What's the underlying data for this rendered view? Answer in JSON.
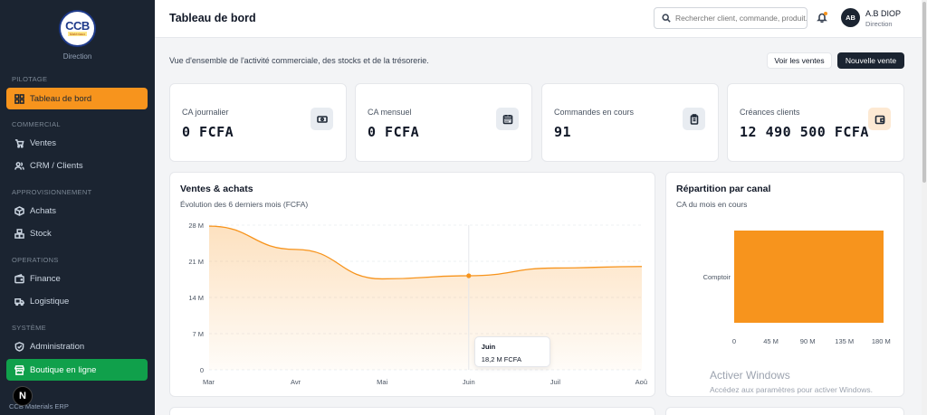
{
  "sidebar": {
    "logo_text": "CCB",
    "logo_sub": "Matériaux",
    "role": "Direction",
    "sections": {
      "pilotage": "PILOTAGE",
      "commercial": "COMMERCIAL",
      "approvisionnement": "APPROVISIONNEMENT",
      "operations": "OPERATIONS",
      "systeme": "SYSTÈME"
    },
    "items": {
      "dashboard": "Tableau de bord",
      "ventes": "Ventes",
      "crm": "CRM / Clients",
      "achats": "Achats",
      "stock": "Stock",
      "finance": "Finance",
      "logistique": "Logistique",
      "administration": "Administration",
      "boutique": "Boutique en ligne"
    },
    "badge": "N",
    "footer": "CCB Materials ERP"
  },
  "header": {
    "title": "Tableau de bord",
    "search_placeholder": "Rechercher client, commande, produit...",
    "avatar": "AB",
    "user_name": "A.B DIOP",
    "user_role": "Direction"
  },
  "main": {
    "subtitle": "Vue d'ensemble de l'activité commerciale, des stocks et de la trésorerie.",
    "btn_voir_ventes": "Voir les ventes",
    "btn_nouvelle_vente": "Nouvelle vente"
  },
  "kpis": [
    {
      "label": "CA journalier",
      "value": "0 FCFA",
      "icon": "cash-icon"
    },
    {
      "label": "CA mensuel",
      "value": "0 FCFA",
      "icon": "calendar-icon"
    },
    {
      "label": "Commandes en cours",
      "value": "91",
      "icon": "clipboard-icon"
    },
    {
      "label": "Créances clients",
      "value": "12 490 500 FCFA",
      "icon": "wallet-icon"
    }
  ],
  "colors": {
    "accent": "#f7941d",
    "sidebar_bg": "#1b2431",
    "green": "#10a04b"
  },
  "chart_data": [
    {
      "type": "area",
      "title": "Ventes & achats",
      "subtitle": "Évolution des 6 derniers mois (FCFA)",
      "categories": [
        "Mar",
        "Avr",
        "Mai",
        "Juin",
        "Juil",
        "Aoû"
      ],
      "yticks": [
        "0",
        "7 M",
        "14 M",
        "21 M",
        "28 M"
      ],
      "ylim": [
        0,
        28
      ],
      "series": [
        {
          "values": [
            27.8,
            23.3,
            17.6,
            18.2,
            19.7,
            20.0
          ]
        }
      ],
      "grid": true,
      "tooltip": {
        "title": "Juin",
        "value": "18,2 M FCFA"
      }
    },
    {
      "type": "bar",
      "orientation": "horizontal",
      "title": "Répartition par canal",
      "subtitle": "CA du mois en cours",
      "categories": [
        "Comptoir"
      ],
      "values": [
        183
      ],
      "xticks": [
        "0",
        "45 M",
        "90 M",
        "135 M",
        "180 M"
      ],
      "xlim": [
        0,
        183
      ]
    }
  ],
  "watermark": {
    "title": "Activer Windows",
    "sub": "Accédez aux paramètres pour activer Windows."
  }
}
